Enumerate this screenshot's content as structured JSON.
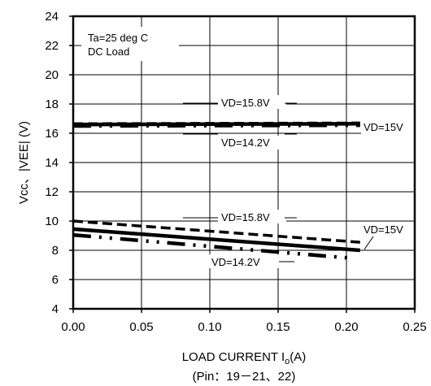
{
  "chart_data": {
    "type": "line",
    "xlabel": "LOAD CURRENT I",
    "xlabel_sub": "o",
    "xlabel_unit": "(A)",
    "xlabel_line2": "(Pin：19－21、22)",
    "ylabel": "Vcc、|VEE| (V)",
    "xlim": [
      0,
      0.25
    ],
    "ylim": [
      4,
      24
    ],
    "x_ticks": [
      "0.00",
      "0.05",
      "0.10",
      "0.15",
      "0.20",
      "0.25"
    ],
    "y_ticks": [
      "4",
      "6",
      "8",
      "10",
      "12",
      "14",
      "16",
      "18",
      "20",
      "22",
      "24"
    ],
    "grid": true,
    "conditions": [
      "Ta=25 deg C",
      "DC Load"
    ],
    "series": [
      {
        "name": "VD=15.8V",
        "group": "upper",
        "style": "dash",
        "x": [
          0,
          0.21
        ],
        "y": [
          16.65,
          16.7
        ]
      },
      {
        "name": "VD=15V",
        "group": "upper",
        "style": "solid",
        "x": [
          0,
          0.21
        ],
        "y": [
          16.6,
          16.65
        ]
      },
      {
        "name": "VD=14.2V",
        "group": "upper",
        "style": "dashdot",
        "x": [
          0,
          0.21
        ],
        "y": [
          16.5,
          16.55
        ]
      },
      {
        "name": "VD=15.8V",
        "group": "lower",
        "style": "dash",
        "x": [
          0,
          0.21
        ],
        "y": [
          10.0,
          8.55
        ]
      },
      {
        "name": "VD=15V",
        "group": "lower",
        "style": "solid",
        "x": [
          0,
          0.21
        ],
        "y": [
          9.45,
          8.0
        ]
      },
      {
        "name": "VD=14.2V",
        "group": "lower",
        "style": "dashdot",
        "x": [
          0,
          0.205
        ],
        "y": [
          9.05,
          7.45
        ]
      }
    ],
    "annotations": [
      {
        "text": "VD=15.8V",
        "group": "upper"
      },
      {
        "text": "VD=15V",
        "group": "upper"
      },
      {
        "text": "VD=14.2V",
        "group": "upper"
      },
      {
        "text": "VD=15.8V",
        "group": "lower"
      },
      {
        "text": "VD=15V",
        "group": "lower"
      },
      {
        "text": "VD=14.2V",
        "group": "lower"
      }
    ]
  }
}
